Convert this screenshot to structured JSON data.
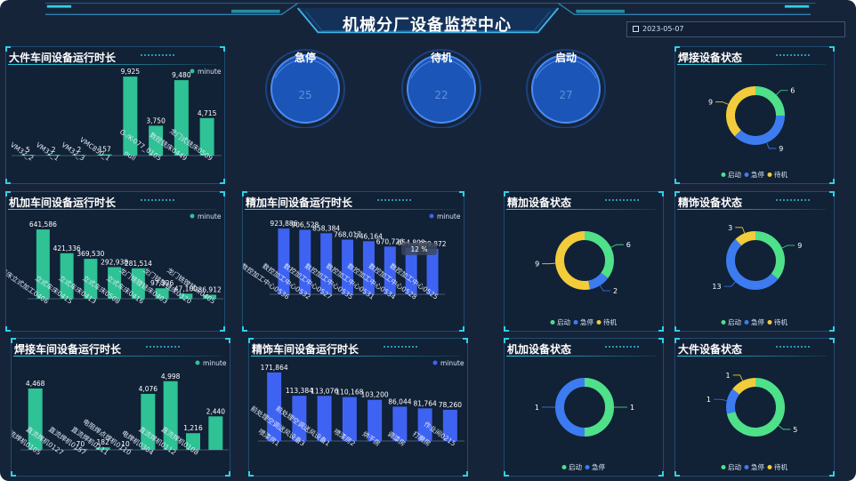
{
  "header": {
    "title": "机械分厂设备监控中心",
    "date": "2023-05-07",
    "calendar_icon": "calendar-icon"
  },
  "stats": [
    {
      "label": "急停",
      "value": "25"
    },
    {
      "label": "待机",
      "value": "22"
    },
    {
      "label": "启动",
      "value": "27"
    }
  ],
  "colors": {
    "bar_green": "#2ec295",
    "bar_blue": "#3e63f2",
    "donut_green": "#4fe08a",
    "donut_blue": "#3c7cf0",
    "donut_yellow": "#f2cc3a",
    "accent": "#2fd0e8"
  },
  "bar_panels": {
    "dajian": {
      "title": "大件车间设备运行时长"
    },
    "jijia": {
      "title": "机加车间设备运行时长"
    },
    "jingjia": {
      "title": "精加车间设备运行时长"
    },
    "hanjie": {
      "title": "焊接车间设备运行时长"
    },
    "jingshi": {
      "title": "精饰车间设备运行时长"
    }
  },
  "status_panels": {
    "hanjie": {
      "title": "焊接设备状态"
    },
    "jingjia": {
      "title": "精加设备状态"
    },
    "jingshi": {
      "title": "精饰设备状态"
    },
    "jijia": {
      "title": "机加设备状态"
    },
    "dajian": {
      "title": "大件设备状态"
    }
  },
  "chart_data": [
    {
      "id": "dajian",
      "type": "bar",
      "title": "大件车间设备运行时长",
      "series": [
        {
          "name": "minute",
          "values": [
            5,
            2,
            2,
            157,
            9925,
            3750,
            9480,
            4715
          ]
        }
      ],
      "categories": [
        "VM32_2",
        "VM32_1",
        "VM32_3",
        "VMC850_1",
        "null",
        "G-/K-077_0105",
        "数控铣床0449",
        "龙门式铣床0509"
      ],
      "value_labels": [
        "5",
        "2",
        "2",
        "157",
        "9,925",
        "3,750",
        "9,480",
        "4,715"
      ],
      "legend": [
        "minute"
      ],
      "ymax": 10500
    },
    {
      "id": "jijia",
      "type": "bar",
      "title": "机加车间设备运行时长",
      "series": [
        {
          "name": "minute",
          "values": [
            641586,
            421336,
            369530,
            292938,
            281514,
            97326,
            47100,
            36912
          ]
        }
      ],
      "categories": [
        "双柱铣床立式加工0406",
        "立式车床0415",
        "立式车床0413",
        "立式车床0508",
        "立式车床0416",
        "龙门铣镗铣床0403",
        "龙门铣镗铣床0320",
        "龙门铣镗铣床0405"
      ],
      "value_labels": [
        "641,586",
        "421,336",
        "369,530",
        "292,938",
        "281,514",
        "97,326",
        "47,100",
        "36,912"
      ],
      "legend": [
        "minute"
      ],
      "ymax": 700000
    },
    {
      "id": "jingjia",
      "type": "bar",
      "title": "精加车间设备运行时长",
      "series": [
        {
          "name": "minute",
          "values": [
            923886,
            906528,
            858384,
            768017,
            746164,
            670726,
            654808,
            639872
          ]
        }
      ],
      "categories": [
        "哈斯启动数控加工中心0536",
        "数控加工中心0532",
        "数控加工中心0527",
        "数控加工中心0535",
        "数控加工中心0531",
        "数控加工中心0534",
        "数控加工中心0528",
        "数控加工中心0525"
      ],
      "value_labels": [
        "923,886",
        "906,528",
        "858,384",
        "768,017",
        "746,164",
        "670,726",
        "654,808",
        "639,872"
      ],
      "tooltip": "12 %",
      "legend": [
        "minute"
      ],
      "ymax": 1000000
    },
    {
      "id": "hanjie",
      "type": "bar",
      "title": "焊接车间设备运行时长",
      "series": [
        {
          "name": "minute",
          "values": [
            4468,
            0,
            70,
            182,
            10,
            4076,
            4998,
            1216,
            2440
          ]
        }
      ],
      "categories": [
        "直流焊机0105",
        "直流焊机0127",
        "直流焊机0157",
        "直流焊机0111",
        "电阻焊点焊机0110",
        "电焊机0304",
        "直流焊机0112",
        "直流焊机0108",
        ""
      ],
      "value_labels": [
        "4,468",
        "",
        "70",
        "182",
        "10",
        "4,076",
        "4,998",
        "1,216",
        "2,440"
      ],
      "legend": [
        "minute"
      ],
      "ymax": 5500
    },
    {
      "id": "jingshi",
      "type": "bar",
      "title": "精饰车间设备运行时长",
      "series": [
        {
          "name": "minute",
          "values": [
            171864,
            113384,
            113076,
            110168,
            103200,
            86044,
            81764,
            78260
          ]
        }
      ],
      "categories": [
        "喷漆房1",
        "前处理空调送风设备3",
        "前处理空调送风设备1",
        "喷漆房2",
        "烘干房",
        "调漆房",
        "打磨房",
        "作业间0215"
      ],
      "value_labels": [
        "171,864",
        "113,384",
        "113,076",
        "110,168",
        "103,200",
        "86,044",
        "81,764",
        "78,260"
      ],
      "legend": [
        "minute"
      ],
      "ymax": 185000
    },
    {
      "id": "status-hanjie",
      "type": "pie",
      "title": "焊接设备状态",
      "labels": [
        "启动",
        "急停",
        "待机"
      ],
      "values": [
        6,
        9,
        9
      ]
    },
    {
      "id": "status-jingjia",
      "type": "pie",
      "title": "精加设备状态",
      "labels": [
        "启动",
        "急停",
        "待机"
      ],
      "values": [
        6,
        2,
        9
      ]
    },
    {
      "id": "status-jingshi",
      "type": "pie",
      "title": "精饰设备状态",
      "labels": [
        "启动",
        "急停",
        "待机"
      ],
      "values": [
        9,
        13,
        3
      ]
    },
    {
      "id": "status-jijia",
      "type": "pie",
      "title": "机加设备状态",
      "labels": [
        "启动",
        "急停"
      ],
      "values": [
        1,
        1
      ]
    },
    {
      "id": "status-dajian",
      "type": "pie",
      "title": "大件设备状态",
      "labels": [
        "启动",
        "急停",
        "待机"
      ],
      "values": [
        5,
        1,
        1
      ]
    }
  ]
}
